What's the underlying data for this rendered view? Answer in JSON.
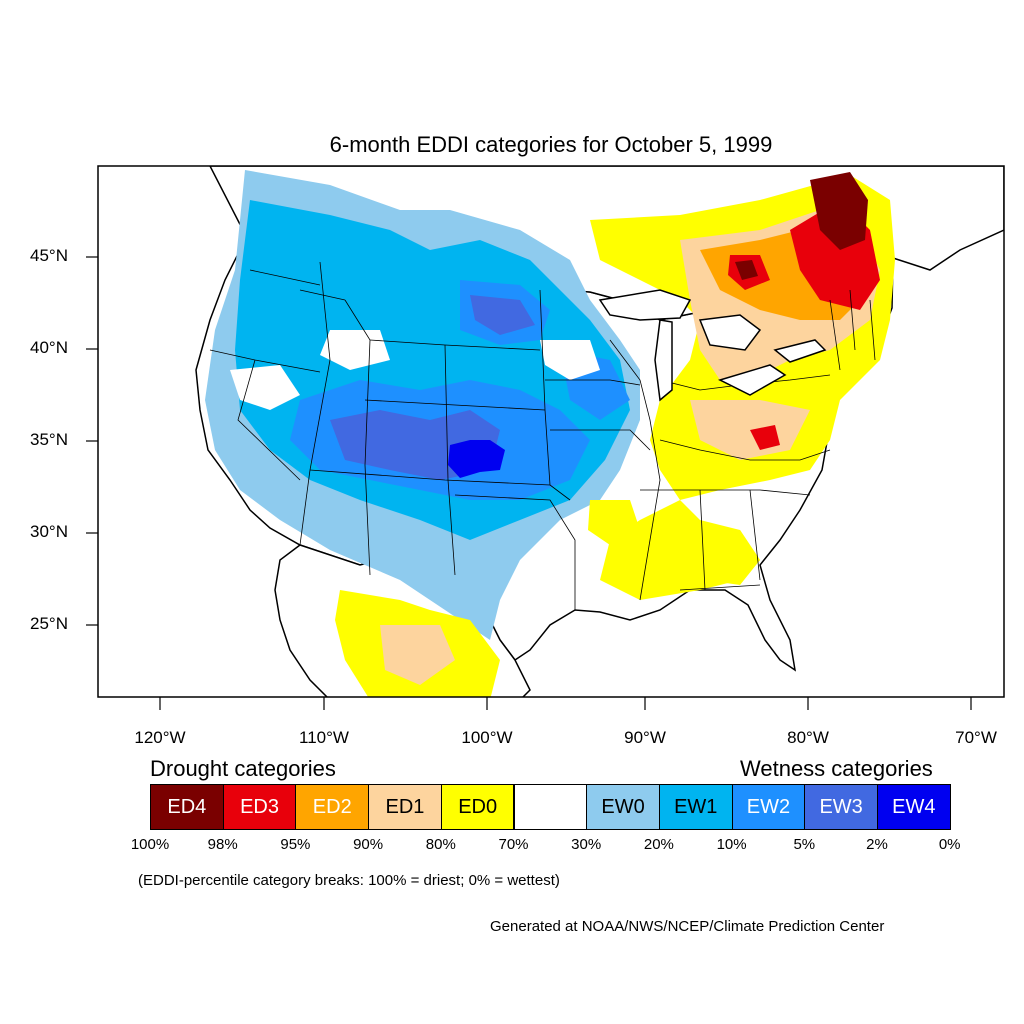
{
  "title": "6-month EDDI categories for October 5, 1999",
  "axes": {
    "lat_ticks": [
      "45°N",
      "40°N",
      "35°N",
      "30°N",
      "25°N"
    ],
    "lon_ticks": [
      "120°W",
      "110°W",
      "100°W",
      "90°W",
      "80°W",
      "70°W"
    ]
  },
  "legend": {
    "drought_heading": "Drought categories",
    "wetness_heading": "Wetness categories",
    "categories": [
      {
        "label": "ED4",
        "color": "#7a0000",
        "text_color": "#ffffff"
      },
      {
        "label": "ED3",
        "color": "#e8000b",
        "text_color": "#ffffff"
      },
      {
        "label": "ED2",
        "color": "#ffa500",
        "text_color": "#ffffff"
      },
      {
        "label": "ED1",
        "color": "#fdd49e",
        "text_color": "#000000"
      },
      {
        "label": "ED0",
        "color": "#ffff00",
        "text_color": "#000000"
      },
      {
        "label": "",
        "color": "#ffffff",
        "text_color": "#000000"
      },
      {
        "label": "EW0",
        "color": "#8ecbee",
        "text_color": "#000000"
      },
      {
        "label": "EW1",
        "color": "#00b4f0",
        "text_color": "#000000"
      },
      {
        "label": "EW2",
        "color": "#1e90ff",
        "text_color": "#ffffff"
      },
      {
        "label": "EW3",
        "color": "#4169e1",
        "text_color": "#ffffff"
      },
      {
        "label": "EW4",
        "color": "#0000f0",
        "text_color": "#ffffff"
      }
    ],
    "breaks": [
      "100%",
      "98%",
      "95%",
      "90%",
      "80%",
      "70%",
      "30%",
      "20%",
      "10%",
      "5%",
      "2%",
      "0%"
    ]
  },
  "note": "(EDDI-percentile category breaks: 100% = driest; 0% = wettest)",
  "credit": "Generated at NOAA/NWS/NCEP/Climate Prediction Center"
}
